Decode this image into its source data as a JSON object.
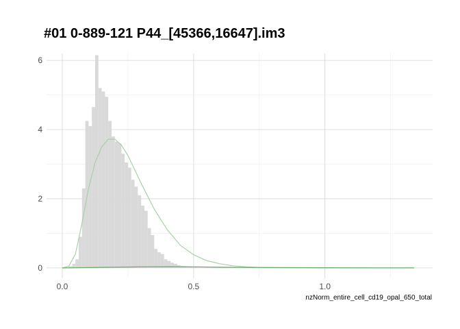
{
  "chart_data": {
    "type": "histogram",
    "title": "#01 0-889-121 P44_[45366,16647].im3",
    "xlabel": "nzNorm_entire_cell_cd19_opal_650_total",
    "ylabel": "",
    "xlim": [
      -0.06,
      1.41
    ],
    "ylim": [
      -0.3,
      6.2
    ],
    "x_ticks": [
      0.0,
      0.5,
      1.0
    ],
    "x_tick_labels": [
      "0.0",
      "0.5",
      "1.0"
    ],
    "y_ticks": [
      0,
      2,
      4,
      6
    ],
    "y_tick_labels": [
      "0",
      "2",
      "4",
      "6"
    ],
    "grid": true,
    "legend": "none",
    "histogram": {
      "bin_width": 0.0125,
      "start": 0.025,
      "color": "#d9d9d9",
      "density": [
        0.05,
        0.12,
        0.25,
        0.9,
        2.3,
        4.25,
        4.1,
        4.65,
        6.15,
        5.2,
        5.1,
        4.95,
        4.25,
        3.8,
        3.65,
        3.6,
        3.3,
        3.05,
        2.9,
        2.55,
        2.35,
        2.1,
        1.8,
        1.65,
        1.15,
        0.95,
        0.55,
        0.45,
        0.4,
        0.25,
        0.2,
        0.15,
        0.12,
        0.08,
        0.06,
        0.05,
        0.04,
        0.03,
        0.02,
        0.01
      ]
    },
    "series": [
      {
        "name": "",
        "type": "fitted-density",
        "color": "#a6d1a6",
        "x": [
          0.0,
          0.025,
          0.05,
          0.075,
          0.1,
          0.125,
          0.15,
          0.175,
          0.2,
          0.225,
          0.25,
          0.3,
          0.35,
          0.4,
          0.45,
          0.5,
          0.55,
          0.6,
          0.65,
          0.7,
          0.75,
          0.8,
          0.9,
          1.0,
          1.1,
          1.2,
          1.34
        ],
        "y": [
          0.0,
          0.05,
          0.4,
          1.3,
          2.3,
          3.05,
          3.5,
          3.72,
          3.72,
          3.55,
          3.25,
          2.45,
          1.7,
          1.1,
          0.65,
          0.38,
          0.21,
          0.12,
          0.06,
          0.03,
          0.015,
          0.008,
          0.003,
          0.001,
          0.0,
          0.0,
          0.0
        ]
      },
      {
        "name": "",
        "type": "fitted-density",
        "color": "#6aa86a",
        "x": [
          0.0,
          0.1,
          0.2,
          0.3,
          0.4,
          0.5,
          0.6,
          0.8,
          1.0,
          1.2,
          1.34
        ],
        "y": [
          0.0,
          0.01,
          0.02,
          0.03,
          0.035,
          0.03,
          0.02,
          0.01,
          0.005,
          0.002,
          0.001
        ]
      }
    ]
  }
}
